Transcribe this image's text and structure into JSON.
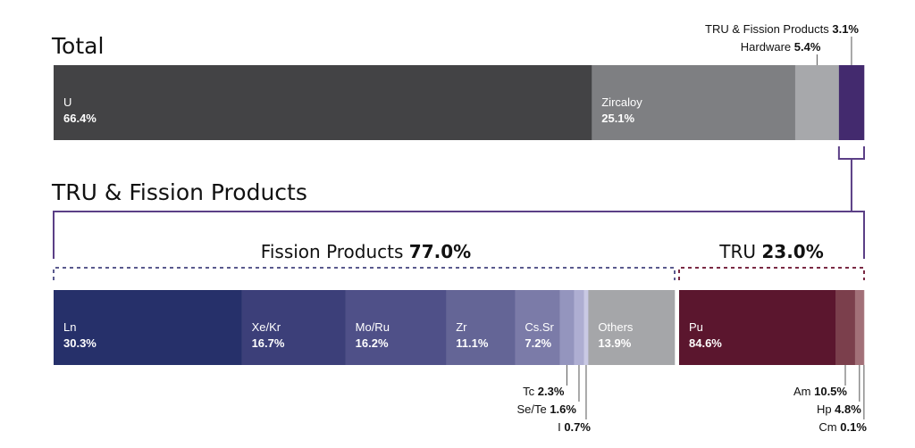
{
  "chart_data": [
    {
      "type": "bar",
      "stacked": "horizontal-100%",
      "title": "Total",
      "segments": [
        {
          "label": "U",
          "value": 66.4,
          "value_text": "66.4%",
          "color": "#434345",
          "inline": true
        },
        {
          "label": "Zircaloy",
          "value": 25.1,
          "value_text": "25.1%",
          "color": "#7e7f82",
          "inline": true
        },
        {
          "label": "Hardware",
          "value": 5.4,
          "value_text": "5.4%",
          "color": "#a7a8ab",
          "inline": false
        },
        {
          "label": "TRU & Fission Products",
          "value": 3.1,
          "value_text": "3.1%",
          "color": "#432a6e",
          "inline": false
        }
      ]
    },
    {
      "type": "bar",
      "stacked": "horizontal-100%",
      "title": "TRU & Fission Products",
      "groups": [
        {
          "label": "Fission Products",
          "value": 77.0,
          "value_text": "77.0%",
          "bracket_color": "#5a5a8e"
        },
        {
          "label": "TRU",
          "value": 23.0,
          "value_text": "23.0%",
          "bracket_color": "#7a2a44"
        }
      ],
      "fission_products": [
        {
          "label": "Ln",
          "value": 30.3,
          "value_text": "30.3%",
          "color": "#26306a",
          "inline": true
        },
        {
          "label": "Xe/Kr",
          "value": 16.7,
          "value_text": "16.7%",
          "color": "#3c3f79",
          "inline": true
        },
        {
          "label": "Mo/Ru",
          "value": 16.2,
          "value_text": "16.2%",
          "color": "#4f5088",
          "inline": true
        },
        {
          "label": "Zr",
          "value": 11.1,
          "value_text": "11.1%",
          "color": "#646596",
          "inline": true
        },
        {
          "label": "Cs.Sr",
          "value": 7.2,
          "value_text": "7.2%",
          "color": "#7b7ba8",
          "inline": true
        },
        {
          "label": "Tc",
          "value": 2.3,
          "value_text": "2.3%",
          "color": "#9495be",
          "inline": false
        },
        {
          "label": "Se/Te",
          "value": 1.6,
          "value_text": "1.6%",
          "color": "#aeaed2",
          "inline": false
        },
        {
          "label": "I",
          "value": 0.7,
          "value_text": "0.7%",
          "color": "#c9c9e4",
          "inline": false
        },
        {
          "label": "Others",
          "value": 13.9,
          "value_text": "13.9%",
          "color": "#a5a6a9",
          "inline": true
        }
      ],
      "tru": [
        {
          "label": "Pu",
          "value": 84.6,
          "value_text": "84.6%",
          "color": "#5b162e",
          "inline": true
        },
        {
          "label": "Am",
          "value": 10.5,
          "value_text": "10.5%",
          "color": "#7b3f4c",
          "inline": false
        },
        {
          "label": "Hp",
          "value": 4.8,
          "value_text": "4.8%",
          "color": "#a27078",
          "inline": false
        },
        {
          "label": "Cm",
          "value": 0.1,
          "value_text": "0.1%",
          "color": "#c29ca0",
          "inline": false
        }
      ]
    }
  ]
}
